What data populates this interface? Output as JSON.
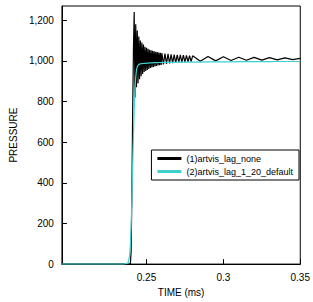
{
  "chart_data": {
    "type": "line",
    "x_label": "TIME (ms)",
    "y_label": "PRESSURE",
    "xlim": [
      0.195,
      0.35
    ],
    "xticks": [
      0.25,
      0.3,
      0.35
    ],
    "ylim": [
      0,
      1270
    ],
    "yticks": [
      0,
      200,
      400,
      600,
      800,
      {
        "value": 1000,
        "label": "1,000"
      },
      {
        "value": 1200,
        "label": "1,200"
      }
    ],
    "grid": false,
    "legend": "right",
    "x": [
      0.195,
      0.235,
      0.238,
      0.239,
      0.2395,
      0.24,
      0.2405,
      0.241,
      0.2415,
      0.242,
      0.2425,
      0.243,
      0.2435,
      0.244,
      0.2445,
      0.245,
      0.2455,
      0.246,
      0.2465,
      0.247,
      0.2475,
      0.248,
      0.2485,
      0.249,
      0.2495,
      0.25,
      0.2505,
      0.251,
      0.2515,
      0.252,
      0.2525,
      0.253,
      0.2535,
      0.254,
      0.2545,
      0.255,
      0.2555,
      0.256,
      0.2565,
      0.257,
      0.2575,
      0.258,
      0.2585,
      0.259,
      0.2595,
      0.26,
      0.261,
      0.262,
      0.263,
      0.264,
      0.265,
      0.266,
      0.267,
      0.268,
      0.269,
      0.27,
      0.271,
      0.272,
      0.273,
      0.274,
      0.275,
      0.276,
      0.277,
      0.278,
      0.279,
      0.28,
      0.285,
      0.29,
      0.295,
      0.3,
      0.305,
      0.31,
      0.315,
      0.32,
      0.325,
      0.33,
      0.335,
      0.34,
      0.345,
      0.35
    ],
    "series": [
      {
        "name": "(1)artvis_lag_none",
        "color": "#000000",
        "values": [
          0,
          0,
          0,
          0,
          0,
          60,
          350,
          750,
          1050,
          1240,
          820,
          1180,
          870,
          1150,
          890,
          1120,
          910,
          1100,
          925,
          1090,
          935,
          1080,
          945,
          1070,
          950,
          1065,
          955,
          1060,
          960,
          1055,
          965,
          1052,
          968,
          1050,
          970,
          1047,
          973,
          1045,
          975,
          1043,
          977,
          1041,
          979,
          1040,
          980,
          1038,
          983,
          1036,
          985,
          1034,
          987,
          1032,
          989,
          1031,
          990,
          1030,
          992,
          1029,
          993,
          1028,
          994,
          1027,
          995,
          1026,
          996,
          1025,
          998,
          1022,
          1000,
          1020,
          1002,
          1018,
          1003,
          1017,
          1004,
          1016,
          1005,
          1015,
          1006,
          1012
        ]
      },
      {
        "name": "(2)artvis_lag_1_20_default",
        "color": "#3fd0d0",
        "values": [
          0,
          0,
          5,
          40,
          90,
          180,
          320,
          480,
          630,
          760,
          860,
          920,
          955,
          970,
          978,
          982,
          984,
          985,
          986,
          986,
          987,
          987,
          988,
          988,
          988,
          989,
          989,
          989,
          989,
          990,
          990,
          990,
          990,
          990,
          991,
          991,
          991,
          991,
          991,
          991,
          992,
          992,
          992,
          992,
          992,
          992,
          993,
          993,
          993,
          993,
          993,
          993,
          993,
          993,
          993,
          993,
          994,
          994,
          994,
          994,
          994,
          994,
          994,
          994,
          994,
          994,
          994,
          995,
          995,
          995,
          995,
          996,
          996,
          996,
          996,
          996,
          997,
          997,
          997,
          997
        ]
      }
    ]
  }
}
